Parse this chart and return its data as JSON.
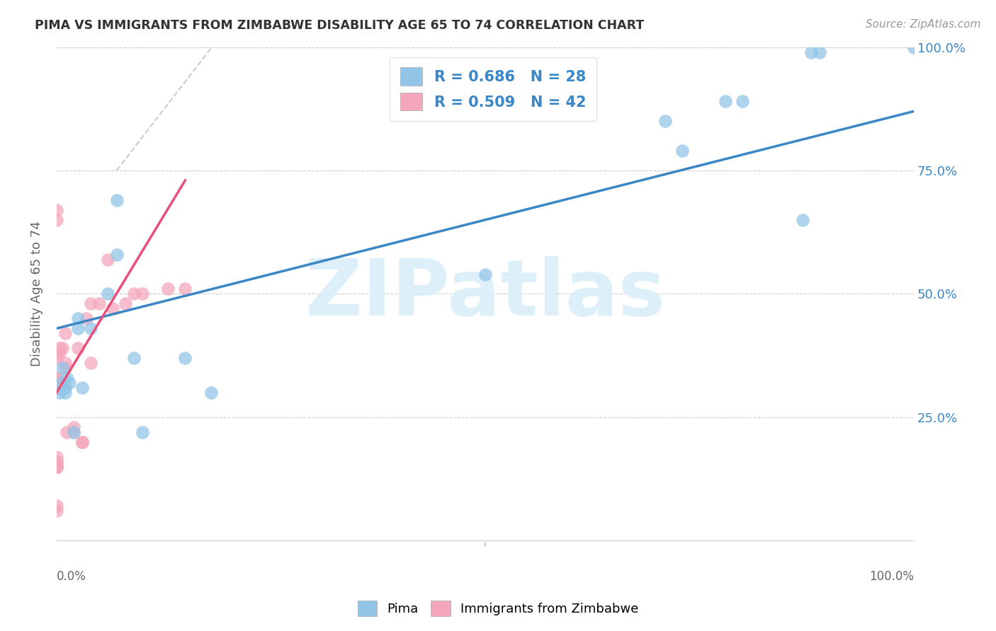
{
  "title": "PIMA VS IMMIGRANTS FROM ZIMBABWE DISABILITY AGE 65 TO 74 CORRELATION CHART",
  "source": "Source: ZipAtlas.com",
  "ylabel": "Disability Age 65 to 74",
  "legend_label1": "Pima",
  "legend_label2": "Immigrants from Zimbabwe",
  "r1": 0.686,
  "n1": 28,
  "r2": 0.509,
  "n2": 42,
  "color_blue": "#92c5e8",
  "color_pink": "#f4a7bb",
  "line_color_blue": "#3a87c8",
  "line_color_pink": "#e8507a",
  "line_color_gray": "#cccccc",
  "watermark_color": "#daeef8",
  "watermark": "ZIPatlas",
  "xlim": [
    0.0,
    1.0
  ],
  "ylim": [
    0.0,
    1.0
  ],
  "yticks": [
    0.0,
    0.25,
    0.5,
    0.75,
    1.0
  ],
  "ytick_labels": [
    "",
    "25.0%",
    "50.0%",
    "75.0%",
    "100.0%"
  ],
  "blue_points_x": [
    0.003,
    0.005,
    0.007,
    0.01,
    0.01,
    0.012,
    0.015,
    0.02,
    0.025,
    0.025,
    0.03,
    0.04,
    0.06,
    0.07,
    0.07,
    0.09,
    0.1,
    0.15,
    0.18,
    0.5,
    0.71,
    0.73,
    0.78,
    0.8,
    0.87,
    0.88,
    0.89,
    1.0
  ],
  "blue_points_y": [
    0.3,
    0.32,
    0.35,
    0.3,
    0.31,
    0.33,
    0.32,
    0.22,
    0.43,
    0.45,
    0.31,
    0.43,
    0.5,
    0.69,
    0.58,
    0.37,
    0.22,
    0.37,
    0.3,
    0.54,
    0.85,
    0.79,
    0.89,
    0.89,
    0.65,
    0.99,
    0.99,
    1.0
  ],
  "pink_points_x": [
    0.0,
    0.0,
    0.0,
    0.0,
    0.0,
    0.0,
    0.0,
    0.0,
    0.0,
    0.0,
    0.0,
    0.0,
    0.0,
    0.0,
    0.0,
    0.0,
    0.0,
    0.003,
    0.003,
    0.005,
    0.005,
    0.007,
    0.01,
    0.01,
    0.01,
    0.012,
    0.02,
    0.02,
    0.025,
    0.03,
    0.03,
    0.035,
    0.04,
    0.04,
    0.05,
    0.06,
    0.065,
    0.08,
    0.09,
    0.1,
    0.13,
    0.15
  ],
  "pink_points_y": [
    0.31,
    0.31,
    0.32,
    0.32,
    0.33,
    0.33,
    0.15,
    0.15,
    0.15,
    0.16,
    0.16,
    0.17,
    0.37,
    0.65,
    0.67,
    0.06,
    0.07,
    0.38,
    0.39,
    0.31,
    0.32,
    0.39,
    0.42,
    0.35,
    0.36,
    0.22,
    0.22,
    0.23,
    0.39,
    0.2,
    0.2,
    0.45,
    0.36,
    0.48,
    0.48,
    0.57,
    0.47,
    0.48,
    0.5,
    0.5,
    0.51,
    0.51
  ],
  "blue_line_x0": 0.0,
  "blue_line_y0": 0.43,
  "blue_line_x1": 1.0,
  "blue_line_y1": 0.87,
  "pink_line_x0": 0.0,
  "pink_line_y0": 0.3,
  "pink_line_x1": 0.15,
  "pink_line_y1": 0.73,
  "gray_line_x0": 0.07,
  "gray_line_y0": 0.75,
  "gray_line_x1": 0.19,
  "gray_line_y1": 1.02
}
